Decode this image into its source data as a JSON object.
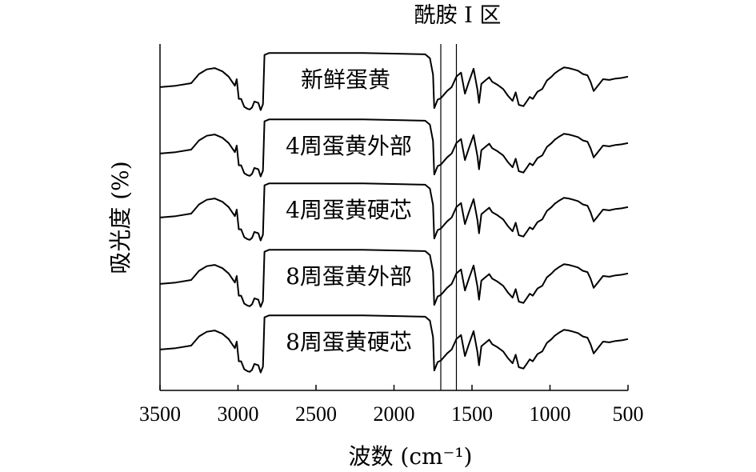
{
  "chart_data": {
    "type": "line",
    "title": "",
    "xlabel": "波数 (cm⁻¹)",
    "ylabel": "吸光度 (%)",
    "xlim": [
      3500,
      500
    ],
    "x_reversed": true,
    "xticks": [
      3500,
      3000,
      2500,
      2000,
      1500,
      1000,
      500
    ],
    "grid": false,
    "legend": "inline",
    "annotation": {
      "text": "酰胺 I 区",
      "band": [
        1700,
        1600
      ]
    },
    "series": [
      {
        "name": "新鲜蛋黄",
        "x": [
          3500,
          3400,
          3300,
          3250,
          3200,
          3150,
          3100,
          3060,
          3020,
          3008,
          2995,
          2980,
          2960,
          2940,
          2925,
          2910,
          2895,
          2870,
          2855,
          2840,
          2830,
          2800,
          2600,
          2200,
          1800,
          1770,
          1750,
          1742,
          1735,
          1720,
          1700,
          1660,
          1630,
          1600,
          1570,
          1545,
          1520,
          1490,
          1465,
          1455,
          1440,
          1420,
          1390,
          1370,
          1340,
          1300,
          1270,
          1240,
          1220,
          1200,
          1170,
          1150,
          1130,
          1110,
          1080,
          1050,
          1020,
          990,
          970,
          940,
          910,
          880,
          850,
          820,
          790,
          760,
          740,
          720,
          700,
          660,
          620,
          580,
          540,
          500
        ],
        "y": [
          1.6,
          1.8,
          2.2,
          3.6,
          4.3,
          4.5,
          4.0,
          3.2,
          1.8,
          2.8,
          -0.2,
          -0.2,
          -1.4,
          -1.7,
          -1.8,
          -1.5,
          -0.6,
          -0.8,
          -1.9,
          -1.0,
          6.5,
          6.8,
          6.8,
          6.8,
          6.6,
          6.0,
          3.5,
          -1.6,
          -1.2,
          -0.3,
          -0.1,
          1.0,
          1.6,
          3.2,
          3.8,
          0.6,
          2.4,
          4.4,
          1.2,
          -0.8,
          2.1,
          2.5,
          3.1,
          2.4,
          2.0,
          1.3,
          0.3,
          -0.5,
          0.8,
          -1.1,
          -1.3,
          -0.6,
          0.1,
          -0.2,
          0.9,
          1.3,
          2.6,
          3.2,
          3.7,
          4.2,
          4.6,
          4.5,
          4.3,
          4.1,
          3.6,
          3.4,
          2.4,
          1.0,
          1.6,
          2.8,
          2.7,
          2.9,
          3.0,
          3.2
        ]
      },
      {
        "name": "4周蛋黄外部",
        "x": [
          3500,
          3400,
          3300,
          3250,
          3200,
          3150,
          3100,
          3060,
          3020,
          3008,
          2995,
          2980,
          2960,
          2940,
          2925,
          2910,
          2895,
          2870,
          2855,
          2840,
          2830,
          2800,
          2600,
          2200,
          1800,
          1770,
          1750,
          1742,
          1735,
          1720,
          1700,
          1660,
          1630,
          1600,
          1570,
          1545,
          1520,
          1490,
          1465,
          1455,
          1440,
          1420,
          1390,
          1370,
          1340,
          1300,
          1270,
          1240,
          1220,
          1200,
          1170,
          1150,
          1130,
          1110,
          1080,
          1050,
          1020,
          990,
          970,
          940,
          910,
          880,
          850,
          820,
          790,
          760,
          740,
          720,
          700,
          660,
          620,
          580,
          540,
          500
        ],
        "y": [
          1.6,
          1.8,
          2.2,
          3.6,
          4.3,
          4.5,
          4.0,
          3.2,
          1.8,
          2.8,
          -0.2,
          -0.2,
          -1.4,
          -1.7,
          -1.8,
          -1.5,
          -0.6,
          -0.8,
          -1.9,
          -1.0,
          6.5,
          6.8,
          6.8,
          6.8,
          6.6,
          6.0,
          3.5,
          -1.6,
          -1.2,
          -0.3,
          -0.1,
          1.0,
          1.6,
          3.2,
          3.8,
          0.6,
          2.4,
          4.4,
          1.2,
          -0.8,
          2.1,
          2.5,
          3.1,
          2.4,
          2.0,
          1.3,
          0.3,
          -0.5,
          0.8,
          -1.1,
          -1.3,
          -0.6,
          0.1,
          -0.2,
          0.9,
          1.3,
          2.6,
          3.2,
          3.7,
          4.2,
          4.6,
          4.5,
          4.3,
          4.1,
          3.6,
          3.4,
          2.4,
          1.0,
          1.6,
          2.8,
          2.7,
          2.9,
          3.0,
          3.2
        ]
      },
      {
        "name": "4周蛋黄硬芯",
        "x": [
          3500,
          3400,
          3300,
          3250,
          3200,
          3150,
          3100,
          3060,
          3020,
          3008,
          2995,
          2980,
          2960,
          2940,
          2925,
          2910,
          2895,
          2870,
          2855,
          2840,
          2830,
          2800,
          2600,
          2200,
          1800,
          1770,
          1750,
          1742,
          1735,
          1720,
          1700,
          1660,
          1630,
          1600,
          1570,
          1545,
          1520,
          1490,
          1465,
          1455,
          1440,
          1420,
          1390,
          1370,
          1340,
          1300,
          1270,
          1240,
          1220,
          1200,
          1170,
          1150,
          1130,
          1110,
          1080,
          1050,
          1020,
          990,
          970,
          940,
          910,
          880,
          850,
          820,
          790,
          760,
          740,
          720,
          700,
          660,
          620,
          580,
          540,
          500
        ],
        "y": [
          1.6,
          1.8,
          2.2,
          3.6,
          4.3,
          4.5,
          4.0,
          3.2,
          1.8,
          2.8,
          -0.2,
          -0.2,
          -1.4,
          -1.7,
          -1.8,
          -1.5,
          -0.6,
          -0.8,
          -1.9,
          -1.0,
          6.5,
          6.8,
          6.8,
          6.8,
          6.6,
          6.0,
          3.5,
          -1.6,
          -1.2,
          -0.3,
          -0.1,
          1.0,
          1.6,
          3.2,
          3.8,
          0.6,
          2.4,
          4.4,
          1.2,
          -0.8,
          2.1,
          2.5,
          3.1,
          2.4,
          2.0,
          1.3,
          0.3,
          -0.5,
          0.8,
          -1.1,
          -1.3,
          -0.6,
          0.1,
          -0.2,
          0.9,
          1.3,
          2.6,
          3.2,
          3.7,
          4.2,
          4.6,
          4.5,
          4.3,
          4.1,
          3.6,
          3.4,
          2.4,
          1.0,
          1.6,
          2.8,
          2.7,
          2.9,
          3.0,
          3.2
        ]
      },
      {
        "name": "8周蛋黄外部",
        "x": [
          3500,
          3400,
          3300,
          3250,
          3200,
          3150,
          3100,
          3060,
          3020,
          3008,
          2995,
          2980,
          2960,
          2940,
          2925,
          2910,
          2895,
          2870,
          2855,
          2840,
          2830,
          2800,
          2600,
          2200,
          1800,
          1770,
          1750,
          1742,
          1735,
          1720,
          1700,
          1660,
          1630,
          1600,
          1570,
          1545,
          1520,
          1490,
          1465,
          1455,
          1440,
          1420,
          1390,
          1370,
          1340,
          1300,
          1270,
          1240,
          1220,
          1200,
          1170,
          1150,
          1130,
          1110,
          1080,
          1050,
          1020,
          990,
          970,
          940,
          910,
          880,
          850,
          820,
          790,
          760,
          740,
          720,
          700,
          660,
          620,
          580,
          540,
          500
        ],
        "y": [
          1.6,
          1.8,
          2.2,
          3.6,
          4.3,
          4.5,
          4.0,
          3.2,
          1.8,
          2.8,
          -0.2,
          -0.2,
          -1.4,
          -1.7,
          -1.8,
          -1.5,
          -0.6,
          -0.8,
          -1.9,
          -1.0,
          6.5,
          6.8,
          6.8,
          6.8,
          6.6,
          6.0,
          3.5,
          -1.6,
          -1.2,
          -0.3,
          -0.1,
          1.0,
          1.6,
          3.2,
          3.8,
          0.6,
          2.4,
          4.4,
          1.2,
          -0.8,
          2.1,
          2.5,
          3.1,
          2.4,
          2.0,
          1.3,
          0.3,
          -0.5,
          0.8,
          -1.1,
          -1.3,
          -0.6,
          0.1,
          -0.2,
          0.9,
          1.3,
          2.6,
          3.2,
          3.7,
          4.2,
          4.6,
          4.5,
          4.3,
          4.1,
          3.6,
          3.4,
          2.4,
          1.0,
          1.6,
          2.8,
          2.7,
          2.9,
          3.0,
          3.2
        ]
      },
      {
        "name": "8周蛋黄硬芯",
        "x": [
          3500,
          3400,
          3300,
          3250,
          3200,
          3150,
          3100,
          3060,
          3020,
          3008,
          2995,
          2980,
          2960,
          2940,
          2925,
          2910,
          2895,
          2870,
          2855,
          2840,
          2830,
          2800,
          2600,
          2200,
          1800,
          1770,
          1750,
          1742,
          1735,
          1720,
          1700,
          1660,
          1630,
          1600,
          1570,
          1545,
          1520,
          1490,
          1465,
          1455,
          1440,
          1420,
          1390,
          1370,
          1340,
          1300,
          1270,
          1240,
          1220,
          1200,
          1170,
          1150,
          1130,
          1110,
          1080,
          1050,
          1020,
          990,
          970,
          940,
          910,
          880,
          850,
          820,
          790,
          760,
          740,
          720,
          700,
          660,
          620,
          580,
          540,
          500
        ],
        "y": [
          1.6,
          1.8,
          2.2,
          3.6,
          4.3,
          4.5,
          4.0,
          3.2,
          1.8,
          2.8,
          -0.2,
          -0.2,
          -1.4,
          -1.7,
          -1.8,
          -1.5,
          -0.6,
          -0.8,
          -1.9,
          -1.0,
          6.5,
          6.8,
          6.8,
          6.8,
          6.6,
          6.0,
          3.5,
          -1.6,
          -1.2,
          -0.3,
          -0.1,
          1.0,
          1.6,
          3.2,
          3.8,
          0.6,
          2.4,
          4.4,
          1.2,
          -0.8,
          2.1,
          2.5,
          3.1,
          2.4,
          2.0,
          1.3,
          0.3,
          -0.5,
          0.8,
          -1.1,
          -1.3,
          -0.6,
          0.1,
          -0.2,
          0.9,
          1.3,
          2.6,
          3.2,
          3.7,
          4.2,
          4.6,
          4.5,
          4.3,
          4.1,
          3.6,
          3.4,
          2.4,
          1.0,
          1.6,
          2.8,
          2.7,
          2.9,
          3.0,
          3.2
        ]
      }
    ]
  }
}
